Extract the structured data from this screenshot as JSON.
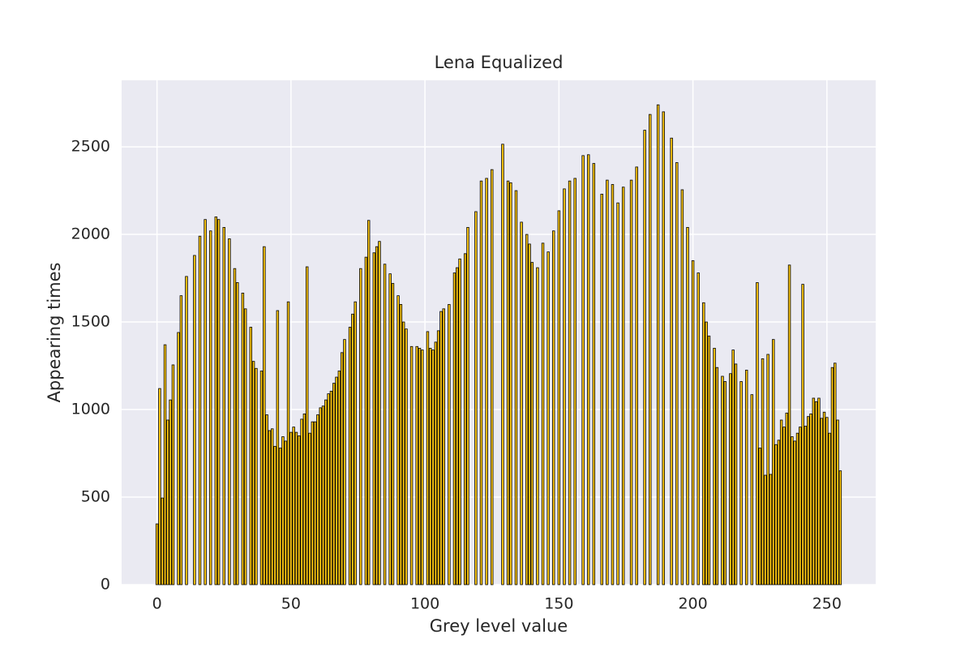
{
  "chart_data": {
    "type": "bar",
    "title": "Lena Equalized",
    "x_label": "Grey level value",
    "y_label": "Appearing times",
    "x": [
      0,
      1,
      2,
      3,
      4,
      5,
      6,
      7,
      8,
      9,
      10,
      11,
      12,
      13,
      14,
      15,
      16,
      17,
      18,
      19,
      20,
      21,
      22,
      23,
      24,
      25,
      26,
      27,
      28,
      29,
      30,
      31,
      32,
      33,
      34,
      35,
      36,
      37,
      38,
      39,
      40,
      41,
      42,
      43,
      44,
      45,
      46,
      47,
      48,
      49,
      50,
      51,
      52,
      53,
      54,
      55,
      56,
      57,
      58,
      59,
      60,
      61,
      62,
      63,
      64,
      65,
      66,
      67,
      68,
      69,
      70,
      71,
      72,
      73,
      74,
      75,
      76,
      77,
      78,
      79,
      80,
      81,
      82,
      83,
      84,
      85,
      86,
      87,
      88,
      89,
      90,
      91,
      92,
      93,
      94,
      95,
      96,
      97,
      98,
      99,
      100,
      101,
      102,
      103,
      104,
      105,
      106,
      107,
      108,
      109,
      110,
      111,
      112,
      113,
      114,
      115,
      116,
      117,
      118,
      119,
      120,
      121,
      122,
      123,
      124,
      125,
      126,
      127,
      128,
      129,
      130,
      131,
      132,
      133,
      134,
      135,
      136,
      137,
      138,
      139,
      140,
      141,
      142,
      143,
      144,
      145,
      146,
      147,
      148,
      149,
      150,
      151,
      152,
      153,
      154,
      155,
      156,
      157,
      158,
      159,
      160,
      161,
      162,
      163,
      164,
      165,
      166,
      167,
      168,
      169,
      170,
      171,
      172,
      173,
      174,
      175,
      176,
      177,
      178,
      179,
      180,
      181,
      182,
      183,
      184,
      185,
      186,
      187,
      188,
      189,
      190,
      191,
      192,
      193,
      194,
      195,
      196,
      197,
      198,
      199,
      200,
      201,
      202,
      203,
      204,
      205,
      206,
      207,
      208,
      209,
      210,
      211,
      212,
      213,
      214,
      215,
      216,
      217,
      218,
      219,
      220,
      221,
      222,
      223,
      224,
      225,
      226,
      227,
      228,
      229,
      230,
      231,
      232,
      233,
      234,
      235,
      236,
      237,
      238,
      239,
      240,
      241,
      242,
      243,
      244,
      245,
      246,
      247,
      248,
      249,
      250,
      251,
      252,
      253,
      254,
      255
    ],
    "values": [
      347,
      1120,
      495,
      1370,
      940,
      1055,
      1255,
      0,
      1440,
      1650,
      0,
      1760,
      0,
      0,
      1880,
      0,
      1990,
      0,
      2085,
      0,
      2020,
      0,
      2100,
      2085,
      0,
      2040,
      0,
      1975,
      0,
      1805,
      1725,
      0,
      1665,
      1575,
      0,
      1470,
      1275,
      1235,
      0,
      1220,
      1930,
      970,
      880,
      890,
      790,
      1565,
      780,
      845,
      820,
      1615,
      870,
      900,
      870,
      850,
      945,
      975,
      1815,
      865,
      930,
      930,
      970,
      1010,
      1020,
      1055,
      1090,
      1105,
      1150,
      1185,
      1220,
      1325,
      1400,
      0,
      1470,
      1545,
      1615,
      0,
      1805,
      0,
      1870,
      2080,
      0,
      1895,
      1930,
      1960,
      0,
      1830,
      0,
      1775,
      1720,
      0,
      1650,
      1600,
      1500,
      1460,
      0,
      1360,
      0,
      1360,
      1350,
      1340,
      0,
      1445,
      1350,
      1340,
      1385,
      1450,
      1560,
      1575,
      0,
      1600,
      0,
      1780,
      1810,
      1860,
      0,
      1890,
      2040,
      0,
      0,
      2130,
      0,
      2305,
      0,
      2320,
      0,
      2370,
      0,
      0,
      0,
      2515,
      0,
      2305,
      2295,
      0,
      2250,
      0,
      2070,
      0,
      2000,
      1945,
      1840,
      0,
      1810,
      0,
      1950,
      0,
      1900,
      0,
      2020,
      0,
      2135,
      0,
      2260,
      0,
      2305,
      0,
      2320,
      0,
      0,
      2450,
      0,
      2455,
      0,
      2405,
      0,
      0,
      2230,
      0,
      2310,
      0,
      2285,
      0,
      2180,
      0,
      2270,
      0,
      0,
      2310,
      0,
      2385,
      0,
      0,
      2595,
      0,
      2685,
      0,
      0,
      2740,
      0,
      2700,
      0,
      0,
      2550,
      0,
      2410,
      0,
      2255,
      0,
      2040,
      0,
      1850,
      0,
      1780,
      0,
      1610,
      1500,
      1420,
      0,
      1350,
      1240,
      0,
      1190,
      1160,
      0,
      1205,
      1340,
      1260,
      0,
      1160,
      0,
      1225,
      0,
      1085,
      0,
      1725,
      780,
      1290,
      625,
      1315,
      630,
      1400,
      800,
      825,
      940,
      900,
      980,
      1825,
      845,
      820,
      865,
      900,
      1715,
      905,
      960,
      975,
      1065,
      1045,
      1065,
      950,
      985,
      955,
      865,
      1240,
      1265,
      940,
      650
    ],
    "color": "#ffc911",
    "edge_color": "#000000",
    "bar_width": 0.8,
    "xlim": [
      -13.2,
      268.2
    ],
    "xticks": [
      0,
      50,
      100,
      150,
      200,
      250
    ],
    "ylim": [
      0,
      2880
    ],
    "yticks": [
      0,
      500,
      1000,
      1500,
      2000,
      2500
    ],
    "grid": true
  }
}
